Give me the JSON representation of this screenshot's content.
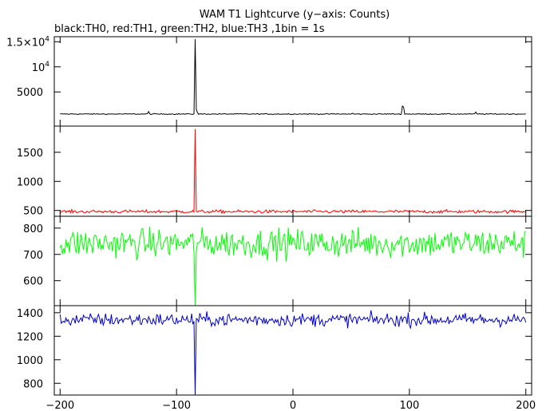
{
  "chart_data": {
    "type": "line",
    "title": "WAM T1 Lightcurve (y−axis: Counts)",
    "subtitle": "black:TH0, red:TH1, green:TH2, blue:TH3 ,1bin = 1s",
    "xlim": [
      -205,
      205
    ],
    "x_ticks": [
      -200,
      -100,
      0,
      100,
      200
    ],
    "x_tick_labels": [
      "−200",
      "−100",
      "0",
      "100",
      "200"
    ],
    "grid": false,
    "panels": [
      {
        "series_color": "#000000",
        "ylim": [
          -1800,
          16000
        ],
        "y_ticks": [
          5000,
          10000,
          15000
        ],
        "y_tick_labels": [
          {
            "mantissa": "",
            "base": "5000",
            "exp": ""
          },
          {
            "mantissa": "",
            "base": "10",
            "exp": "4"
          },
          {
            "mantissa": "1.5×",
            "base": "10",
            "exp": "4"
          }
        ],
        "baseline": 600,
        "noise": 50,
        "features": [
          {
            "x": -84,
            "y": 15500
          },
          {
            "x": -83,
            "y": 1500
          },
          {
            "x": -82,
            "y": 900
          },
          {
            "x": -124,
            "y": 1100
          },
          {
            "x": 94,
            "y": 2200
          },
          {
            "x": 95,
            "y": 2000
          },
          {
            "x": 157,
            "y": 1000
          },
          {
            "x": 51,
            "y": 750
          }
        ],
        "spike_x": -84
      },
      {
        "series_color": "#ff0000",
        "ylim": [
          400,
          1950
        ],
        "y_ticks": [
          500,
          1000,
          1500
        ],
        "y_tick_labels": [
          {
            "mantissa": "",
            "base": "500",
            "exp": ""
          },
          {
            "mantissa": "",
            "base": "1000",
            "exp": ""
          },
          {
            "mantissa": "",
            "base": "1500",
            "exp": ""
          }
        ],
        "baseline": 480,
        "noise": 14,
        "features": [
          {
            "x": -84,
            "y": 1900
          }
        ],
        "spike_x": -84
      },
      {
        "series_color": "#00ff00",
        "ylim": [
          505,
          845
        ],
        "y_ticks": [
          600,
          700,
          800
        ],
        "y_tick_labels": [
          {
            "mantissa": "",
            "base": "600",
            "exp": ""
          },
          {
            "mantissa": "",
            "base": "700",
            "exp": ""
          },
          {
            "mantissa": "",
            "base": "800",
            "exp": ""
          }
        ],
        "baseline": 742,
        "noise": 28,
        "features": [
          {
            "x": -84,
            "y": 505
          }
        ],
        "spike_x": -84
      },
      {
        "series_color": "#0000cc",
        "ylim": [
          700,
          1460
        ],
        "y_ticks": [
          800,
          1000,
          1200,
          1400
        ],
        "y_tick_labels": [
          {
            "mantissa": "",
            "base": "800",
            "exp": ""
          },
          {
            "mantissa": "",
            "base": "1000",
            "exp": ""
          },
          {
            "mantissa": "",
            "base": "1200",
            "exp": ""
          },
          {
            "mantissa": "",
            "base": "1400",
            "exp": ""
          }
        ],
        "baseline": 1340,
        "noise": 28,
        "features": [
          {
            "x": -84,
            "y": 700
          }
        ],
        "spike_x": -84
      }
    ]
  }
}
